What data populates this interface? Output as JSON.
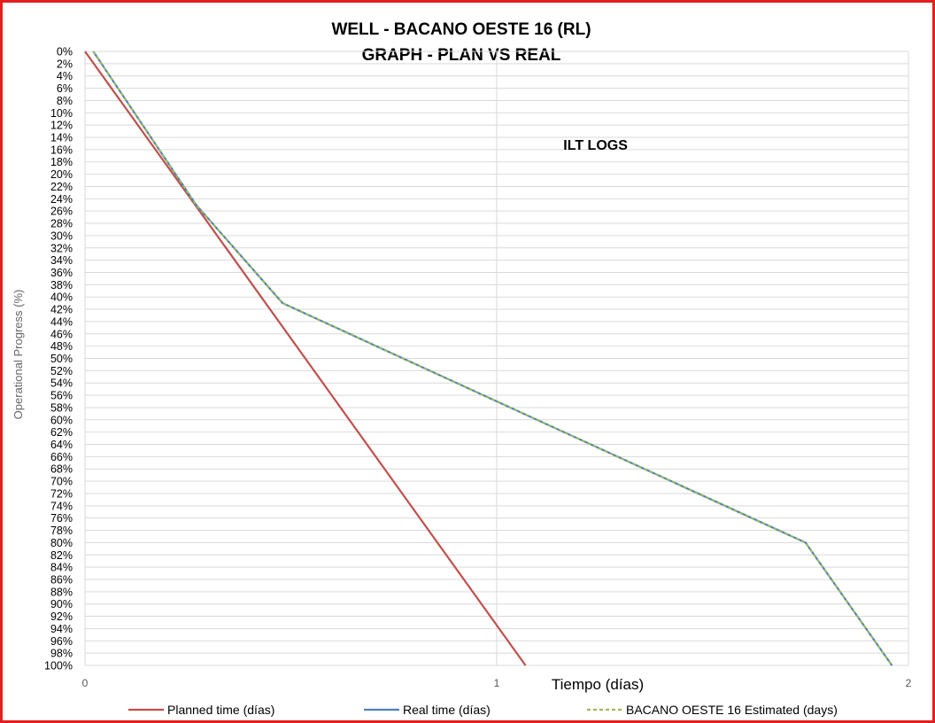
{
  "chart_data": {
    "type": "line",
    "title": "WELL -  BACANO OESTE 16 (RL)",
    "subtitle": "GRAPH  - PLAN VS REAL",
    "xlabel": "Tiempo (días)",
    "ylabel": "Operational Progress (%)",
    "xlim": [
      0,
      2
    ],
    "ylim": [
      0,
      100
    ],
    "y_inverted": true,
    "x_ticks": [
      "0",
      "1",
      "2"
    ],
    "y_ticks": [
      "0%",
      "2%",
      "4%",
      "6%",
      "8%",
      "10%",
      "12%",
      "14%",
      "16%",
      "18%",
      "20%",
      "22%",
      "24%",
      "26%",
      "28%",
      "30%",
      "32%",
      "34%",
      "36%",
      "38%",
      "40%",
      "42%",
      "44%",
      "46%",
      "48%",
      "50%",
      "52%",
      "54%",
      "56%",
      "58%",
      "60%",
      "62%",
      "64%",
      "66%",
      "68%",
      "70%",
      "72%",
      "74%",
      "76%",
      "78%",
      "80%",
      "82%",
      "84%",
      "86%",
      "88%",
      "90%",
      "92%",
      "94%",
      "96%",
      "98%",
      "100%"
    ],
    "grid": true,
    "legend_position": "bottom",
    "annotations": [
      {
        "text": "ILT LOGS",
        "x": 1.24,
        "y": 16
      }
    ],
    "series": [
      {
        "name": "Planned time (días)",
        "color": "#c0504d",
        "style": "solid",
        "x": [
          0,
          1.07
        ],
        "y": [
          0,
          100
        ]
      },
      {
        "name": "Real time (días)",
        "color": "#4f81bd",
        "style": "solid",
        "x": [
          0.02,
          0.27,
          0.48,
          1.0,
          1.75,
          1.96
        ],
        "y": [
          0,
          25,
          41,
          57,
          80,
          100
        ]
      },
      {
        "name": "BACANO OESTE 16 Estimated (days)",
        "color": "#9bbb59",
        "style": "dashed",
        "x": [
          0.02,
          0.27,
          0.48,
          1.0,
          1.75,
          1.96
        ],
        "y": [
          0,
          25,
          41,
          57,
          80,
          100
        ]
      }
    ]
  }
}
